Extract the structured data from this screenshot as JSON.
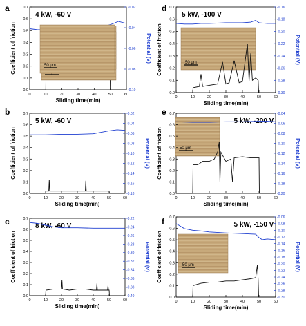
{
  "figure": {
    "x_label": "Sliding time(min)",
    "y_left_label": "Coefficient of friction",
    "y_right_label": "Potential (V)",
    "scale_bar_label": "50 μm",
    "friction_color": "#111111",
    "potential_color": "#1f3fd0"
  },
  "chart_data": [
    {
      "panel": "a",
      "condition": "4 kW, -60 V",
      "type": "line",
      "xlim": [
        0,
        60
      ],
      "x_ticks": [
        0,
        10,
        20,
        30,
        40,
        50,
        60
      ],
      "left_ylim": [
        0.0,
        0.7
      ],
      "left_ticks": [
        "0.0",
        "0.1",
        "0.2",
        "0.3",
        "0.4",
        "0.5",
        "0.6",
        "0.7"
      ],
      "right_ylim": [
        -0.1,
        -0.02
      ],
      "right_ticks": [
        "-0.02",
        "-0.04",
        "-0.06",
        "-0.08",
        "-0.10"
      ],
      "friction": {
        "x": [
          0,
          10,
          10.2,
          15,
          20,
          25,
          30,
          35,
          40,
          45,
          49,
          49.8,
          50,
          60
        ],
        "y": [
          0,
          0,
          0.22,
          0.23,
          0.23,
          0.22,
          0.22,
          0.22,
          0.23,
          0.22,
          0.22,
          0.22,
          0,
          0
        ]
      },
      "potential": {
        "x": [
          0,
          5,
          10,
          15,
          20,
          25,
          30,
          35,
          40,
          45,
          50,
          52,
          55,
          60
        ],
        "y": [
          -0.041,
          -0.042,
          -0.042,
          -0.041,
          -0.041,
          -0.04,
          -0.04,
          -0.04,
          -0.039,
          -0.039,
          -0.037,
          -0.036,
          -0.034,
          -0.036
        ]
      }
    },
    {
      "panel": "b",
      "condition": "5 kW, -60 V",
      "type": "line",
      "xlim": [
        0,
        60
      ],
      "x_ticks": [
        0,
        10,
        20,
        30,
        40,
        50,
        60
      ],
      "left_ylim": [
        0.0,
        0.7
      ],
      "left_ticks": [
        "0.0",
        "0.1",
        "0.2",
        "0.3",
        "0.4",
        "0.5",
        "0.6",
        "0.7"
      ],
      "right_ylim": [
        -0.18,
        -0.02
      ],
      "right_ticks": [
        "-0.02",
        "-0.04",
        "-0.06",
        "-0.08",
        "-0.10",
        "-0.12",
        "-0.14",
        "-0.16",
        "-0.18"
      ],
      "friction": {
        "x": [
          0,
          10,
          10.2,
          12,
          12.3,
          12.6,
          20,
          30,
          35,
          35.3,
          35.6,
          45,
          50,
          50.2,
          60
        ],
        "y": [
          0,
          0,
          0.02,
          0.02,
          0.12,
          0.02,
          0.02,
          0.02,
          0.02,
          0.11,
          0.02,
          0.02,
          0.02,
          0,
          0
        ]
      },
      "potential": {
        "x": [
          0,
          10,
          20,
          30,
          40,
          50,
          55,
          60
        ],
        "y": [
          -0.063,
          -0.063,
          -0.062,
          -0.062,
          -0.061,
          -0.055,
          -0.053,
          -0.054
        ]
      }
    },
    {
      "panel": "c",
      "condition": "8 kW, -60 V",
      "type": "line",
      "xlim": [
        0,
        60
      ],
      "x_ticks": [
        0,
        10,
        20,
        30,
        40,
        50,
        60
      ],
      "left_ylim": [
        0.0,
        0.7
      ],
      "left_ticks": [
        "0.0",
        "0.1",
        "0.2",
        "0.3",
        "0.4",
        "0.5",
        "0.6",
        "0.7"
      ],
      "right_ylim": [
        -0.4,
        -0.22
      ],
      "right_ticks": [
        "-0.22",
        "-0.24",
        "-0.26",
        "-0.28",
        "-0.30",
        "-0.32",
        "-0.34",
        "-0.36",
        "-0.38",
        "-0.40"
      ],
      "friction": {
        "x": [
          0,
          10,
          10.2,
          15,
          20,
          20.3,
          20.6,
          25,
          30,
          35,
          40,
          42,
          42.3,
          42.6,
          49,
          49.3,
          49.6,
          50,
          50.2,
          60
        ],
        "y": [
          0,
          0,
          0.05,
          0.06,
          0.06,
          0.14,
          0.06,
          0.05,
          0.06,
          0.06,
          0.05,
          0.05,
          0.11,
          0.05,
          0.05,
          0.09,
          0.05,
          0.05,
          0,
          0
        ]
      },
      "potential": {
        "x": [
          0,
          5,
          10,
          15,
          20,
          30,
          40,
          50,
          55,
          60
        ],
        "y": [
          -0.23,
          -0.232,
          -0.236,
          -0.24,
          -0.242,
          -0.242,
          -0.243,
          -0.243,
          -0.243,
          -0.243
        ]
      }
    },
    {
      "panel": "d",
      "condition": "5 kW, -100 V",
      "type": "line",
      "xlim": [
        0,
        60
      ],
      "x_ticks": [
        0,
        10,
        20,
        30,
        40,
        50,
        60
      ],
      "left_ylim": [
        0.0,
        0.7
      ],
      "left_ticks": [
        "0.0",
        "0.1",
        "0.2",
        "0.3",
        "0.4",
        "0.5",
        "0.6",
        "0.7"
      ],
      "right_ylim": [
        -0.3,
        -0.16
      ],
      "right_ticks": [
        "-0.16",
        "-0.18",
        "-0.20",
        "-0.22",
        "-0.24",
        "-0.26",
        "-0.28",
        "-0.30"
      ],
      "friction": {
        "x": [
          0,
          10,
          10.2,
          14,
          15,
          16,
          20,
          25,
          28,
          30,
          32,
          35,
          38,
          40,
          43,
          44,
          45,
          46,
          48,
          49.5,
          49.8,
          60
        ],
        "y": [
          0,
          0,
          0.04,
          0.05,
          0.15,
          0.05,
          0.06,
          0.07,
          0.25,
          0.07,
          0.08,
          0.26,
          0.08,
          0.09,
          0.4,
          0.09,
          0.32,
          0.1,
          0.12,
          0.1,
          0,
          0
        ]
      },
      "potential": {
        "x": [
          0,
          5,
          10,
          15,
          20,
          30,
          40,
          45,
          48,
          50,
          55,
          60
        ],
        "y": [
          -0.187,
          -0.188,
          -0.188,
          -0.187,
          -0.187,
          -0.186,
          -0.186,
          -0.185,
          -0.182,
          -0.186,
          -0.187,
          -0.187
        ]
      }
    },
    {
      "panel": "e",
      "condition": "5 kW, -200 V",
      "type": "line",
      "xlim": [
        0,
        60
      ],
      "x_ticks": [
        0,
        10,
        20,
        30,
        40,
        50,
        60
      ],
      "left_ylim": [
        0.0,
        0.7
      ],
      "left_ticks": [
        "0.0",
        "0.1",
        "0.2",
        "0.3",
        "0.4",
        "0.5",
        "0.6",
        "0.7"
      ],
      "right_ylim": [
        -0.2,
        -0.04
      ],
      "right_ticks": [
        "-0.04",
        "-0.06",
        "-0.08",
        "-0.10",
        "-0.12",
        "-0.14",
        "-0.16",
        "-0.18",
        "-0.20"
      ],
      "friction": {
        "x": [
          0,
          10,
          10.2,
          13,
          16,
          20,
          23,
          25,
          26,
          26.4,
          27,
          30,
          33,
          34,
          35,
          40,
          45,
          50,
          50.2,
          60
        ],
        "y": [
          0,
          0,
          0.25,
          0.25,
          0.28,
          0.28,
          0.3,
          0.36,
          0.45,
          0.1,
          0.36,
          0.28,
          0.3,
          0.1,
          0.31,
          0.32,
          0.31,
          0.31,
          0,
          0
        ]
      },
      "potential": {
        "x": [
          0,
          10,
          20,
          30,
          40,
          50,
          55,
          60
        ],
        "y": [
          -0.057,
          -0.058,
          -0.058,
          -0.057,
          -0.057,
          -0.056,
          -0.056,
          -0.057
        ]
      }
    },
    {
      "panel": "f",
      "condition": "5 kW, -150 V",
      "type": "line",
      "xlim": [
        0,
        60
      ],
      "x_ticks": [
        0,
        10,
        20,
        30,
        40,
        50,
        60
      ],
      "left_ylim": [
        0.0,
        0.7
      ],
      "left_ticks": [
        "0.0",
        "0.1",
        "0.2",
        "0.3",
        "0.4",
        "0.5",
        "0.6",
        "0.7"
      ],
      "right_ylim": [
        -0.3,
        -0.06
      ],
      "right_ticks": [
        "-0.06",
        "-0.08",
        "-0.10",
        "-0.12",
        "-0.14",
        "-0.16",
        "-0.18",
        "-0.20",
        "-0.22",
        "-0.24",
        "-0.26",
        "-0.28",
        "-0.30"
      ],
      "friction": {
        "x": [
          0,
          10,
          10.2,
          15,
          20,
          25,
          30,
          35,
          40,
          45,
          48,
          49,
          49.5,
          49.8,
          60
        ],
        "y": [
          0,
          0,
          0.1,
          0.12,
          0.13,
          0.13,
          0.14,
          0.14,
          0.15,
          0.16,
          0.17,
          0.28,
          0.15,
          0,
          0
        ]
      },
      "potential": {
        "x": [
          0,
          5,
          10,
          15,
          20,
          30,
          40,
          48,
          50,
          52,
          55,
          60
        ],
        "y": [
          -0.08,
          -0.095,
          -0.1,
          -0.102,
          -0.105,
          -0.108,
          -0.11,
          -0.112,
          -0.122,
          -0.128,
          -0.126,
          -0.128
        ]
      }
    }
  ]
}
